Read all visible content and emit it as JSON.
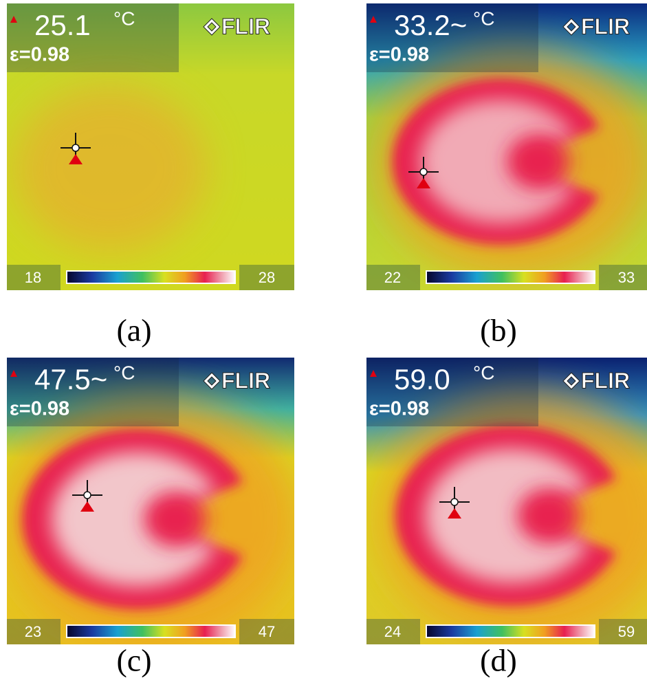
{
  "panels": [
    {
      "temperature": "25.1",
      "unit": "°C",
      "emissivity": "ε=0.98",
      "brand": "FLIR",
      "scale_min": "18",
      "scale_max": "28",
      "caption": "(a)"
    },
    {
      "temperature": "33.2~",
      "unit": "°C",
      "emissivity": "ε=0.98",
      "brand": "FLIR",
      "scale_min": "22",
      "scale_max": "33",
      "caption": "(b)"
    },
    {
      "temperature": "47.5~",
      "unit": "°C",
      "emissivity": "ε=0.98",
      "brand": "FLIR",
      "scale_min": "23",
      "scale_max": "47",
      "caption": "(c)"
    },
    {
      "temperature": "59.0",
      "unit": "°C",
      "emissivity": "ε=0.98",
      "brand": "FLIR",
      "scale_min": "24",
      "scale_max": "59",
      "caption": "(d)"
    }
  ]
}
